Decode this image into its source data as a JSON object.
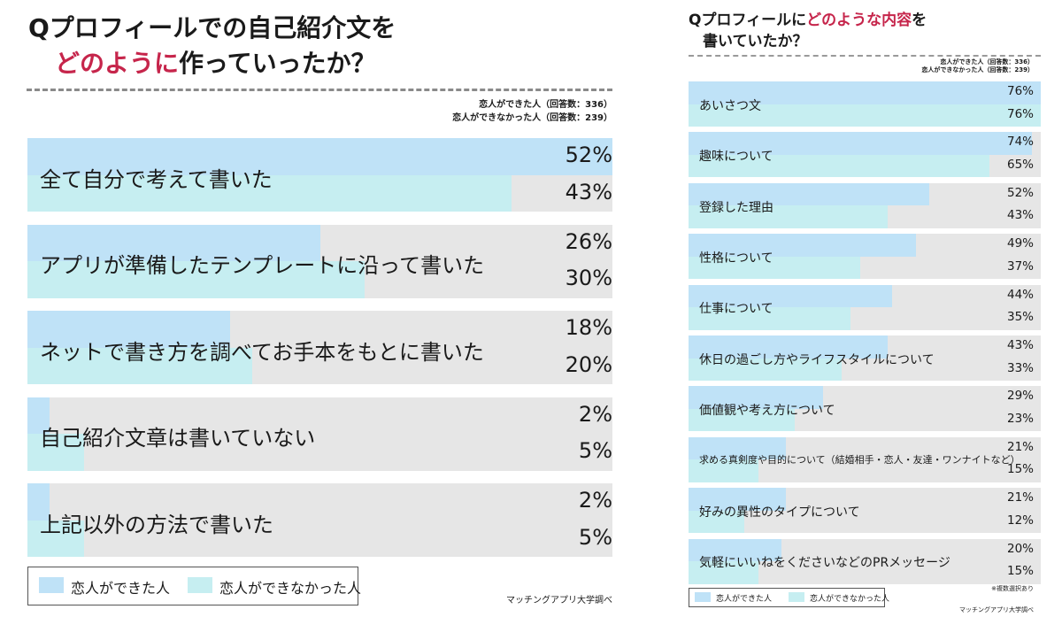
{
  "left": {
    "title_line1": "Qプロフィールでの自己紹介文を",
    "title_line2_highlight": "どのように",
    "title_line2_rest": "作っていったか？",
    "respondents_a": "恋人ができた人（回答数：336）",
    "respondents_b": "恋人ができなかった人（回答数：239）",
    "legend_a": "恋人ができた人",
    "legend_b": "恋人ができなかった人",
    "source": "マッチングアプリ大学調べ"
  },
  "right": {
    "title_line1_prefix": "Qプロフィールに",
    "title_line1_highlight": "どのような内容",
    "title_line1_suffix": "を",
    "title_line2": "書いていたか？",
    "respondents_a": "恋人ができた人（回答数：336）",
    "respondents_b": "恋人ができなかった人（回答数：239）",
    "legend_a": "恋人ができた人",
    "legend_b": "恋人ができなかった人",
    "note": "※複数選択あり",
    "source": "マッチングアプリ大学調べ"
  },
  "colors": {
    "series_a": "#bfe2f7",
    "series_b": "#c6eef1",
    "track": "#e6e6e6",
    "highlight": "#c6254b"
  },
  "chart_data": [
    {
      "type": "bar",
      "orientation": "horizontal",
      "categories": [
        "全て自分で考えて書いた",
        "アプリが準備したテンプレートに沿って書いた",
        "ネットで書き方を調べてお手本をもとに書いた",
        "自己紹介文章は書いていない",
        "上記以外の方法で書いた"
      ],
      "series": [
        {
          "name": "恋人ができた人",
          "values": [
            52,
            26,
            18,
            2,
            2
          ]
        },
        {
          "name": "恋人ができなかった人",
          "values": [
            43,
            30,
            20,
            5,
            5
          ]
        }
      ],
      "unit": "%",
      "xlim": [
        0,
        52
      ],
      "legend": "bottom-left"
    },
    {
      "type": "bar",
      "orientation": "horizontal",
      "categories": [
        "あいさつ文",
        "趣味について",
        "登録した理由",
        "性格について",
        "仕事について",
        "休日の過ごし方やライフスタイルについて",
        "価値観や考え方について",
        "求める真剣度や目的について（結婚相手・恋人・友達・ワンナイトなど）",
        "好みの異性のタイプについて",
        "気軽にいいねをくださいなどのPRメッセージ"
      ],
      "series": [
        {
          "name": "恋人ができた人",
          "values": [
            76,
            74,
            52,
            49,
            44,
            43,
            29,
            21,
            21,
            20
          ]
        },
        {
          "name": "恋人ができなかった人",
          "values": [
            76,
            65,
            43,
            37,
            35,
            33,
            23,
            15,
            12,
            15
          ]
        }
      ],
      "unit": "%",
      "xlim": [
        0,
        76
      ],
      "legend": "bottom-left"
    }
  ]
}
